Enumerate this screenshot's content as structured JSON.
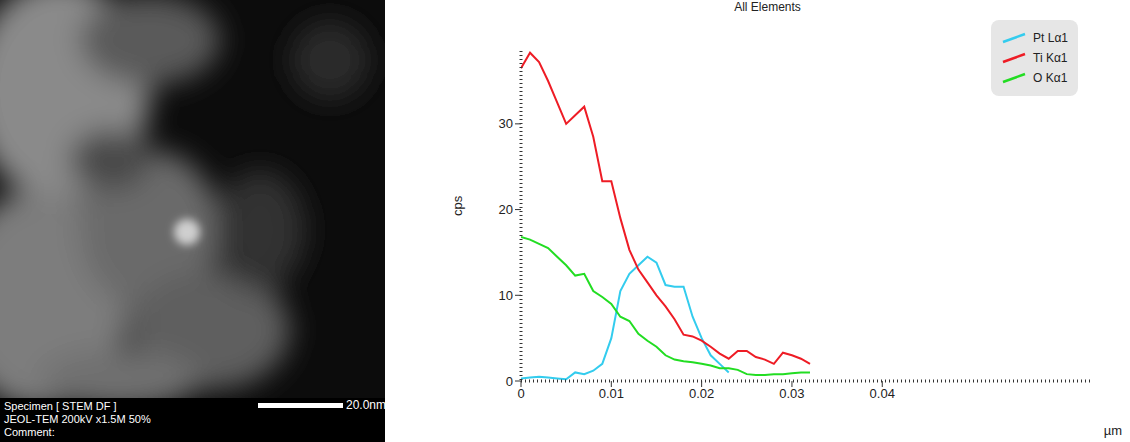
{
  "image": {
    "caption_lines": [
      "Specimen [ STEM DF ]",
      "JEOL-TEM 200kV x1.5M 50%",
      "Comment:"
    ],
    "scale_bar": "20.0nm"
  },
  "chart_data": {
    "type": "line",
    "title": "All Elements",
    "x_label": "µm",
    "y_label": "cps",
    "x": [
      0,
      0.001,
      0.002,
      0.003,
      0.004,
      0.005,
      0.006,
      0.007,
      0.008,
      0.009,
      0.01,
      0.011,
      0.012,
      0.013,
      0.014,
      0.015,
      0.016,
      0.017,
      0.018,
      0.019,
      0.02,
      0.021,
      0.022,
      0.023,
      0.024,
      0.025,
      0.026,
      0.027,
      0.028,
      0.029,
      0.03,
      0.031,
      0.032
    ],
    "series": [
      {
        "name": "Pt Lα1",
        "color": "#33ccee",
        "values": [
          0.3,
          0.4,
          0.5,
          0.4,
          0.3,
          0.2,
          1,
          0.8,
          1.2,
          2,
          5,
          10.5,
          12.5,
          13.5,
          14.5,
          13.8,
          11.2,
          11,
          11,
          7.5,
          5,
          3,
          2,
          1,
          null,
          null,
          null,
          null,
          null,
          null,
          null,
          null,
          null
        ]
      },
      {
        "name": "Ti Kα1",
        "color": "#ee1c25",
        "values": [
          36.5,
          38.3,
          37.2,
          35,
          32.5,
          30,
          31,
          32,
          28.5,
          23.3,
          23.3,
          19,
          15.3,
          13,
          11.5,
          10,
          8.7,
          7.2,
          5.4,
          5.2,
          4.7,
          4,
          3.2,
          2.6,
          3.5,
          3.5,
          2.8,
          2.5,
          2,
          3.3,
          3,
          2.6,
          2
        ]
      },
      {
        "name": "O Kα1",
        "color": "#22dd22",
        "values": [
          16.8,
          16.5,
          16,
          15.5,
          14.5,
          13.5,
          12.3,
          12.5,
          10.5,
          9.8,
          9,
          7.5,
          7,
          5.5,
          4.7,
          4,
          3,
          2.5,
          2.3,
          2.2,
          2,
          1.8,
          1.5,
          1.5,
          1.3,
          0.8,
          0.7,
          0.7,
          0.8,
          0.8,
          0.9,
          1,
          1
        ]
      }
    ],
    "xlim": [
      0,
      0.063
    ],
    "ylim": [
      0,
      38.5
    ],
    "xticks": [
      0,
      0.01,
      0.02,
      0.03,
      0.04
    ],
    "yticks": [
      0,
      10,
      20,
      30
    ],
    "legend": "upper right",
    "grid": false
  }
}
